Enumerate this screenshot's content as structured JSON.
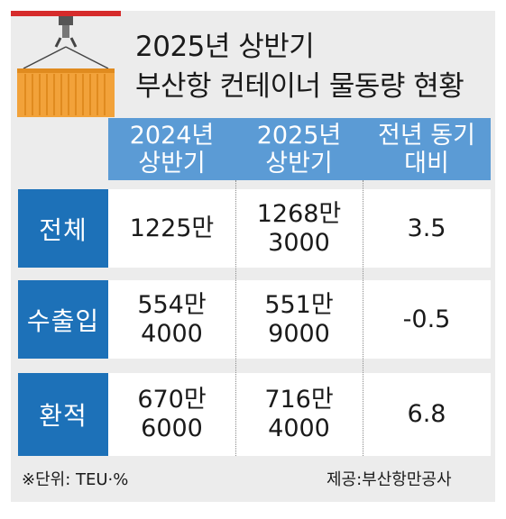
{
  "title": {
    "line1": "2025년 상반기",
    "line2": "부산항 컨테이너 물동량 현황"
  },
  "columns": [
    {
      "line1": "2024년",
      "line2": "상반기"
    },
    {
      "line1": "2025년",
      "line2": "상반기"
    },
    {
      "line1": "전년 동기",
      "line2": "대비"
    }
  ],
  "rows": [
    {
      "label": "전체",
      "y2024": [
        "1225만",
        ""
      ],
      "y2025": [
        "1268만",
        "3000"
      ],
      "change": "3.5"
    },
    {
      "label": "수출입",
      "y2024": [
        "554만",
        "4000"
      ],
      "y2025": [
        "551만",
        "9000"
      ],
      "change": "-0.5"
    },
    {
      "label": "환적",
      "y2024": [
        "670만",
        "6000"
      ],
      "y2025": [
        "716만",
        "4000"
      ],
      "change": "6.8"
    }
  ],
  "footer": {
    "unit": "※단위: TEU·%",
    "source": "제공:부산항만공사"
  },
  "colors": {
    "header_blue": "#5b9bd5",
    "label_blue": "#1d71b8",
    "accent_red": "#d62b2b",
    "container_orange": "#f2a23a",
    "background": "#ececec"
  },
  "icon": "container-crane-icon"
}
